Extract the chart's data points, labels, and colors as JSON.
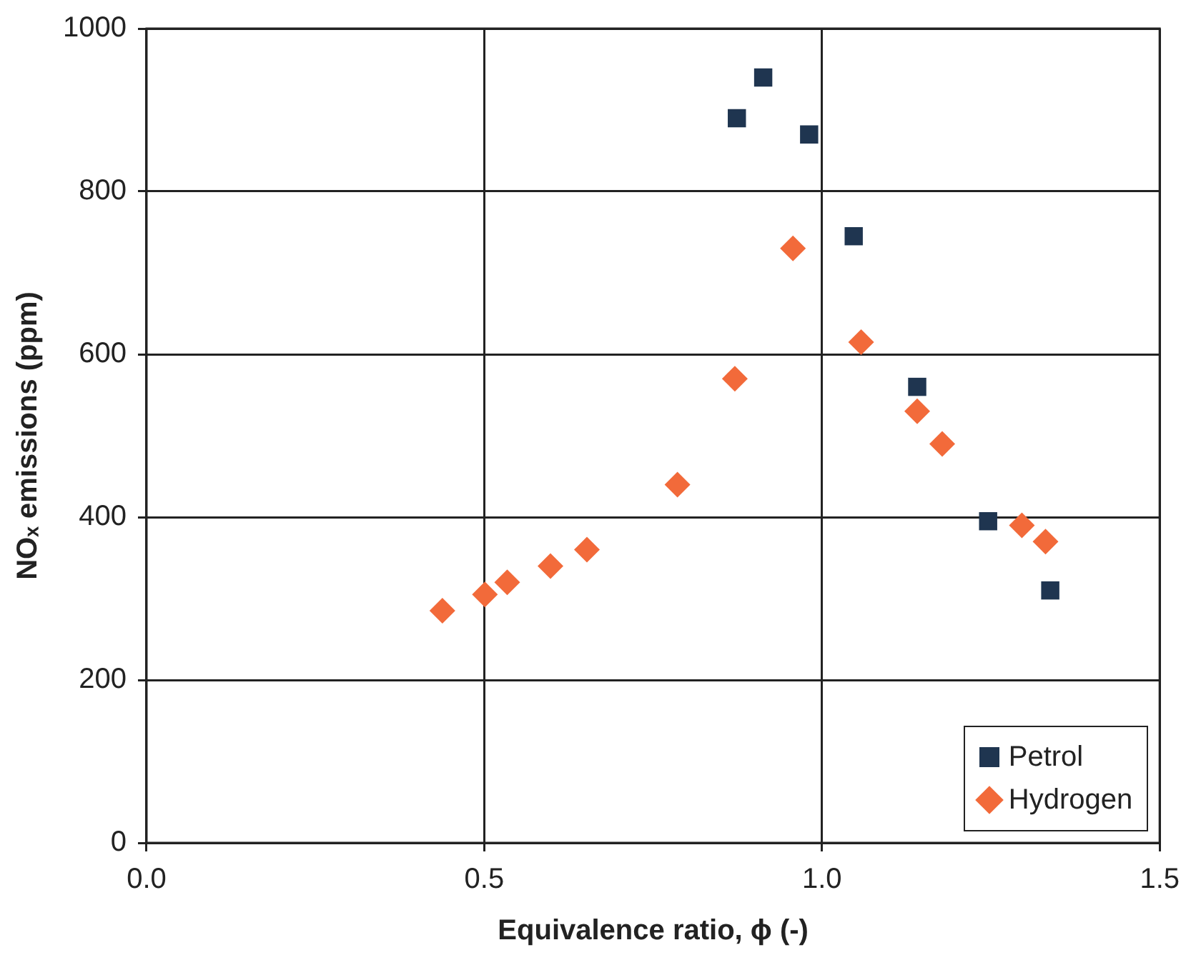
{
  "chart_data": {
    "type": "scatter",
    "xlabel": "Equivalence ratio, ϕ (-)",
    "ylabel": "NOₓ emissions (ppm)",
    "xlim": [
      0,
      1.5
    ],
    "xticks": [
      {
        "value": 0,
        "label": "0.0"
      },
      {
        "value": 0.5,
        "label": "0.5"
      },
      {
        "value": 1,
        "label": "1.0"
      },
      {
        "value": 1.5,
        "label": "1.5"
      }
    ],
    "ylim": [
      0,
      1000
    ],
    "yticks": [
      0,
      200,
      400,
      600,
      800,
      1000
    ],
    "grid": true,
    "legend": "bottom right",
    "series": [
      {
        "name": "Petrol",
        "color": "#1f3550",
        "marker": "square",
        "x": [
          0.874,
          0.913,
          0.981,
          1.047,
          1.141,
          1.246,
          1.338
        ],
        "values": [
          890,
          940,
          870,
          745,
          560,
          395,
          310
        ]
      },
      {
        "name": "Hydrogen",
        "color": "#f26a3a",
        "marker": "diamond",
        "x": [
          0.438,
          0.501,
          0.534,
          0.598,
          0.652,
          0.786,
          0.871,
          0.957,
          1.058,
          1.141,
          1.178,
          1.296,
          1.331
        ],
        "values": [
          285,
          305,
          320,
          340,
          360,
          440,
          570,
          730,
          615,
          530,
          490,
          390,
          370
        ]
      }
    ]
  }
}
